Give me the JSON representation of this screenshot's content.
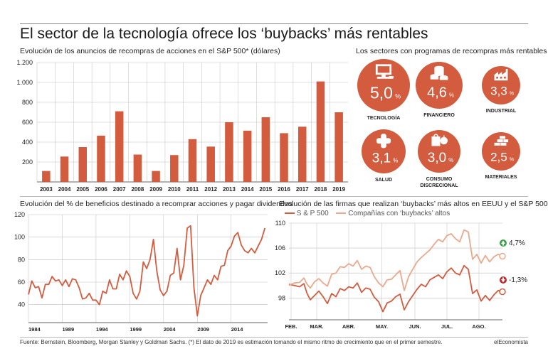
{
  "title": "El sector de la tecnología ofrece los ‘buybacks’ más rentables",
  "footer": {
    "source": "Fuente: Bernstein, Bloomberg, Morgan Stanley y Goldman Sachs. (*) El dato de 2019 es estimación tomando el mismo ritmo de crecimiento que en el primer semestre.",
    "brand": "elEconomista"
  },
  "colors": {
    "accent": "#d35c3f",
    "light": "#eba98c",
    "grid": "#bfbfbf"
  },
  "sectors_panel": {
    "title": "Los sectores con programas de recompras más rentables",
    "items": [
      {
        "label": "TECNOLOGÍA",
        "value": "5,0",
        "unit": "%",
        "icon": "computer-icon"
      },
      {
        "label": "FINANCIERO",
        "value": "4,6",
        "unit": "%",
        "icon": "coins-icon"
      },
      {
        "label": "INDUSTRIAL",
        "value": "3,3",
        "unit": "%",
        "icon": "factory-icon"
      },
      {
        "label": "SALUD",
        "value": "3,1",
        "unit": "%",
        "icon": "medical-cross-icon"
      },
      {
        "label": "CONSUMO\nDISCRECIONAL",
        "value": "3,0",
        "unit": "%",
        "icon": "consumer-goods-icon"
      },
      {
        "label": "MATERIALES",
        "value": "2,5",
        "unit": "%",
        "icon": "materials-stack-icon"
      }
    ]
  },
  "chart_data": [
    {
      "type": "bar",
      "title": "Evolución de los anuncios de recompras de acciones en el S&P 500* (dólares)",
      "categories": [
        "2003",
        "2004",
        "2005",
        "2006",
        "2007",
        "2008",
        "2009",
        "2010",
        "2011",
        "2012",
        "2013",
        "2014",
        "2015",
        "2016",
        "2017",
        "2018",
        "2019"
      ],
      "values": [
        110,
        255,
        350,
        465,
        710,
        275,
        110,
        270,
        430,
        355,
        600,
        515,
        650,
        490,
        555,
        1010,
        700
      ],
      "ylim": [
        0,
        1200
      ],
      "yticks": [
        "200",
        "400",
        "600",
        "800",
        "1.000",
        "1.200"
      ],
      "ytick_values": [
        200,
        400,
        600,
        800,
        1000,
        1200
      ],
      "grid": true
    },
    {
      "type": "line",
      "title": "Evolución del % de beneficios destinado a recomprar acciones y pagar dividendos",
      "xlim": [
        1984,
        2019.4
      ],
      "ylim": [
        24,
        120
      ],
      "xticks": [
        "1984",
        "1989",
        "1994",
        "1999",
        "2004",
        "2009",
        "2014"
      ],
      "xtick_values": [
        1984,
        1989,
        1994,
        1999,
        2004,
        2009,
        2014
      ],
      "yticks": [
        "40",
        "60",
        "80",
        "100",
        "120"
      ],
      "ytick_values": [
        40,
        60,
        80,
        100,
        120
      ],
      "grid": true,
      "series": [
        {
          "values": [
            [
              1984,
              49
            ],
            [
              1984.5,
              61
            ],
            [
              1985,
              55
            ],
            [
              1985.5,
              56
            ],
            [
              1986,
              46
            ],
            [
              1986.5,
              58
            ],
            [
              1987,
              58
            ],
            [
              1987.5,
              65
            ],
            [
              1988,
              61
            ],
            [
              1988.5,
              62
            ],
            [
              1989,
              57
            ],
            [
              1989.5,
              62
            ],
            [
              1990,
              56
            ],
            [
              1990.5,
              63
            ],
            [
              1991,
              62
            ],
            [
              1991.5,
              55
            ],
            [
              1992,
              45
            ],
            [
              1992.5,
              46
            ],
            [
              1993,
              50
            ],
            [
              1993.5,
              44
            ],
            [
              1994,
              44
            ],
            [
              1994.5,
              40
            ],
            [
              1995,
              52
            ],
            [
              1995.5,
              50
            ],
            [
              1996,
              62
            ],
            [
              1996.5,
              54
            ],
            [
              1997,
              54
            ],
            [
              1997.5,
              67
            ],
            [
              1998,
              62
            ],
            [
              1998.5,
              70
            ],
            [
              1999,
              65
            ],
            [
              1999.5,
              50
            ],
            [
              2000,
              45
            ],
            [
              2000.5,
              52
            ],
            [
              2001,
              78
            ],
            [
              2001.5,
              72
            ],
            [
              2002,
              80
            ],
            [
              2002.5,
              98
            ],
            [
              2003,
              70
            ],
            [
              2003.5,
              53
            ],
            [
              2004,
              48
            ],
            [
              2004.5,
              52
            ],
            [
              2005,
              66
            ],
            [
              2005.5,
              68
            ],
            [
              2006,
              90
            ],
            [
              2006.5,
              62
            ],
            [
              2007,
              75
            ],
            [
              2007.5,
              108
            ],
            [
              2008,
              110
            ],
            [
              2008.5,
              55
            ],
            [
              2009,
              30
            ],
            [
              2009.5,
              48
            ],
            [
              2010,
              55
            ],
            [
              2010.5,
              62
            ],
            [
              2011,
              58
            ],
            [
              2011.5,
              66
            ],
            [
              2012,
              62
            ],
            [
              2012.5,
              74
            ],
            [
              2013,
              75
            ],
            [
              2013.5,
              88
            ],
            [
              2014,
              92
            ],
            [
              2014.5,
              101
            ],
            [
              2015,
              104
            ],
            [
              2015.5,
              93
            ],
            [
              2016,
              88
            ],
            [
              2016.5,
              86
            ],
            [
              2017,
              90
            ],
            [
              2017.5,
              86
            ],
            [
              2018,
              92
            ],
            [
              2018.5,
              98
            ],
            [
              2019,
              108
            ]
          ]
        }
      ]
    },
    {
      "type": "line",
      "title": "Evolución de las firmas que realizan ‘buybacks’ más altos en EEUU y el S&P 500",
      "xlim": [
        0,
        200
      ],
      "ylim": [
        94.5,
        110
      ],
      "xticks": [
        "FEB.",
        "MAR.",
        "ABR.",
        "MAY.",
        "JUN.",
        "JUL.",
        "AGO."
      ],
      "xtick_values": [
        2,
        26,
        56,
        87,
        118,
        148,
        178
      ],
      "yticks": [
        "98",
        "102",
        "106",
        "110"
      ],
      "ytick_values": [
        98,
        102,
        106,
        110
      ],
      "grid": true,
      "legend": "top",
      "series": [
        {
          "name": "S & P 500",
          "end_label": "-1,3%",
          "values": [
            [
              0,
              100.2
            ],
            [
              5,
              100
            ],
            [
              10,
              99.8
            ],
            [
              14,
              100.3
            ],
            [
              17,
              98.7
            ],
            [
              20,
              97.7
            ],
            [
              24,
              98.4
            ],
            [
              28,
              99.1
            ],
            [
              32,
              98.2
            ],
            [
              36,
              97.1
            ],
            [
              40,
              98.7
            ],
            [
              44,
              98.2
            ],
            [
              48,
              99.5
            ],
            [
              52,
              99.2
            ],
            [
              56,
              99.8
            ],
            [
              60,
              99.6
            ],
            [
              64,
              100.4
            ],
            [
              68,
              98.9
            ],
            [
              72,
              99.6
            ],
            [
              76,
              99.4
            ],
            [
              80,
              98.1
            ],
            [
              84,
              97.4
            ],
            [
              88,
              95.8
            ],
            [
              92,
              97.2
            ],
            [
              96,
              97.5
            ],
            [
              100,
              98.2
            ],
            [
              104,
              98.6
            ],
            [
              108,
              96.1
            ],
            [
              112,
              97.4
            ],
            [
              116,
              98.4
            ],
            [
              120,
              99.4
            ],
            [
              124,
              100.2
            ],
            [
              128,
              99.8
            ],
            [
              132,
              100.9
            ],
            [
              136,
              101.3
            ],
            [
              140,
              101.7
            ],
            [
              144,
              101.1
            ],
            [
              148,
              102.2
            ],
            [
              152,
              102.8
            ],
            [
              156,
              102.0
            ],
            [
              160,
              101.7
            ],
            [
              164,
              103.2
            ],
            [
              168,
              102.6
            ],
            [
              172,
              98.7
            ],
            [
              176,
              99.3
            ],
            [
              180,
              97.5
            ],
            [
              184,
              98.4
            ],
            [
              188,
              97.6
            ],
            [
              192,
              98.5
            ],
            [
              196,
              99.2
            ],
            [
              200,
              99.0
            ]
          ]
        },
        {
          "name": "Compañías con ‘buybacks’ altos",
          "end_label": "4,7%",
          "values": [
            [
              0,
              100.0
            ],
            [
              5,
              100.4
            ],
            [
              10,
              100.5
            ],
            [
              14,
              101.2
            ],
            [
              17,
              100.2
            ],
            [
              20,
              99.6
            ],
            [
              24,
              100.6
            ],
            [
              28,
              101.1
            ],
            [
              32,
              100.4
            ],
            [
              36,
              99.9
            ],
            [
              40,
              101.8
            ],
            [
              44,
              102.0
            ],
            [
              48,
              103.0
            ],
            [
              52,
              102.9
            ],
            [
              56,
              103.5
            ],
            [
              60,
              103.1
            ],
            [
              64,
              104.0
            ],
            [
              68,
              102.6
            ],
            [
              72,
              103.1
            ],
            [
              76,
              102.9
            ],
            [
              80,
              101.4
            ],
            [
              84,
              100.4
            ],
            [
              88,
              99.8
            ],
            [
              92,
              100.9
            ],
            [
              96,
              101.0
            ],
            [
              100,
              101.7
            ],
            [
              104,
              102.4
            ],
            [
              108,
              99.2
            ],
            [
              112,
              101.4
            ],
            [
              116,
              102.6
            ],
            [
              120,
              103.8
            ],
            [
              124,
              104.5
            ],
            [
              128,
              105.1
            ],
            [
              132,
              105.7
            ],
            [
              136,
              106.6
            ],
            [
              140,
              107.4
            ],
            [
              144,
              107.0
            ],
            [
              148,
              108.0
            ],
            [
              152,
              108.3
            ],
            [
              156,
              107.5
            ],
            [
              160,
              107.0
            ],
            [
              164,
              108.9
            ],
            [
              168,
              108.6
            ],
            [
              172,
              104.2
            ],
            [
              176,
              105.0
            ],
            [
              180,
              103.6
            ],
            [
              184,
              104.8
            ],
            [
              188,
              103.8
            ],
            [
              192,
              104.6
            ],
            [
              196,
              105.0
            ],
            [
              200,
              104.7
            ]
          ]
        }
      ]
    }
  ]
}
